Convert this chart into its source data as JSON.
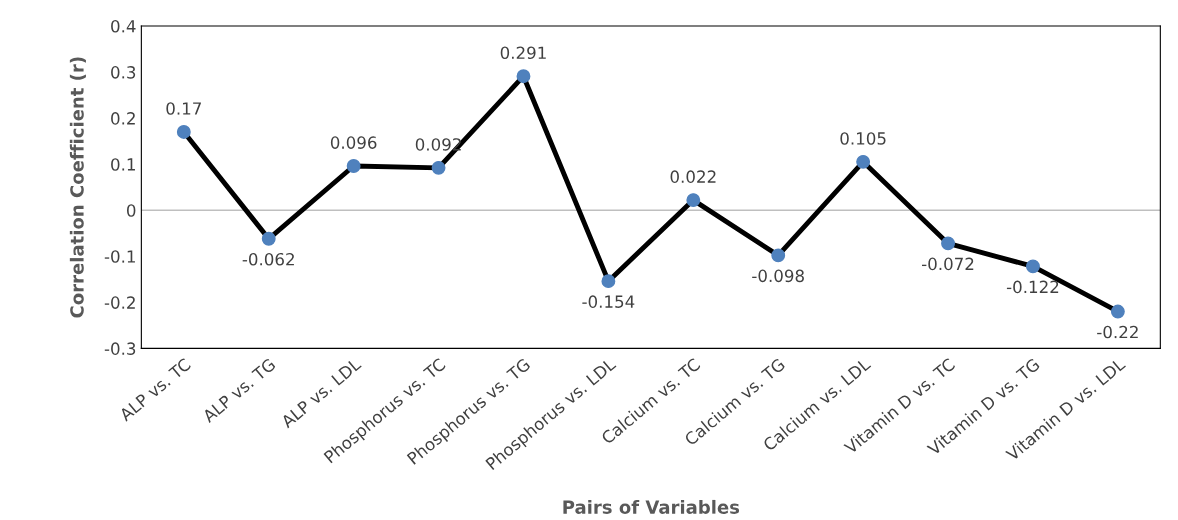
{
  "chart_data": {
    "type": "line",
    "xlabel": "Pairs of Variables",
    "ylabel": "Correlation Coefficient (r)",
    "categories": [
      "ALP vs. TC",
      "ALP vs. TG",
      "ALP vs. LDL",
      "Phosphorus vs. TC",
      "Phosphorus vs. TG",
      "Phosphorus vs. LDL",
      "Calcium vs. TC",
      "Calcium vs. TG",
      "Calcium vs. LDL",
      "Vitamin D vs. TC",
      "Vitamin D vs. TG",
      "Vitamin D vs. LDL"
    ],
    "series": [
      {
        "color": "#000000",
        "values": [
          0.17,
          -0.062,
          0.096,
          0.092,
          0.291,
          -0.154,
          0.022,
          -0.098,
          0.105,
          -0.072,
          -0.122,
          -0.22
        ]
      }
    ],
    "ref_lines": [
      {
        "axis": "y",
        "value": 0,
        "color": "#bfbfbf"
      }
    ],
    "marker": "circle",
    "line_style": "solid",
    "data_labels": true,
    "grid": false,
    "legend": false,
    "ylim": [
      -0.3,
      0.4
    ],
    "yticks": [
      -0.3,
      -0.2,
      -0.1,
      0,
      0.1,
      0.2,
      0.3,
      0.4
    ]
  }
}
